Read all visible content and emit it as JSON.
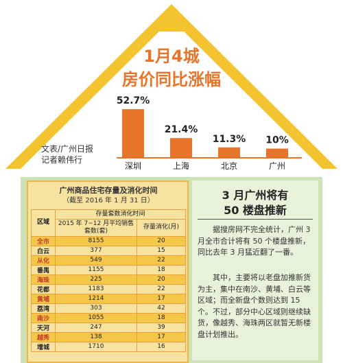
{
  "headline": {
    "line1": "1月4城",
    "line2": "房价同比涨幅"
  },
  "byline": {
    "line1": "文表/广州日报",
    "line2": "记者赖伟行"
  },
  "chart_data": {
    "type": "bar",
    "categories": [
      "深圳",
      "上海",
      "北京",
      "广州"
    ],
    "values": [
      52.7,
      21.4,
      11.3,
      10
    ],
    "value_labels": [
      "52.7%",
      "21.4%",
      "11.3%",
      "10%"
    ],
    "title": "1月4城 房价同比涨幅",
    "xlabel": "",
    "ylabel": "",
    "ylim": [
      0,
      55
    ],
    "grid": false,
    "bar_color": "#e8742a"
  },
  "table": {
    "title": "广州商品住宅存量及消化时间",
    "subtitle": "（截至 2016 年 1 月 31 日）",
    "header_group": "存量套数消化时间",
    "col_district": "区域",
    "col_stock": "2015 年 7~12 月平均销售套数(套)",
    "col_cycle": "存量消化(月)",
    "rows": [
      {
        "district": "全市",
        "stock": "8155",
        "cycle": "20",
        "hl": true
      },
      {
        "district": "白云",
        "stock": "377",
        "cycle": "15",
        "hl": false
      },
      {
        "district": "从化",
        "stock": "549",
        "cycle": "22",
        "hl": true
      },
      {
        "district": "番禺",
        "stock": "1155",
        "cycle": "18",
        "hl": false
      },
      {
        "district": "海珠",
        "stock": "225",
        "cycle": "20",
        "hl": true
      },
      {
        "district": "花都",
        "stock": "1183",
        "cycle": "22",
        "hl": false
      },
      {
        "district": "黄埔",
        "stock": "1214",
        "cycle": "17",
        "hl": true
      },
      {
        "district": "荔湾",
        "stock": "303",
        "cycle": "42",
        "hl": false
      },
      {
        "district": "南沙",
        "stock": "1055",
        "cycle": "18",
        "hl": true
      },
      {
        "district": "天河",
        "stock": "247",
        "cycle": "39",
        "hl": false
      },
      {
        "district": "越秀",
        "stock": "138",
        "cycle": "17",
        "hl": true
      },
      {
        "district": "增城",
        "stock": "1710",
        "cycle": "16",
        "hl": false
      }
    ]
  },
  "article": {
    "heading1": "3 月广州将有",
    "heading2": "50 楼盘推新",
    "para1": "据搜房网不完全统计，广州 3 月全市合计将有 50 个楼盘推新，同比去年 3 月猛近翻了一番。",
    "para2": "其中，主要将以老盘加推新货为主，集中在南沙、黄埔、白云等区域；而全新盘个数则达到 15 个。不过，部分中心区域则继续缺货，像越秀、海珠两区就暂无新楼盘计划推出。"
  }
}
